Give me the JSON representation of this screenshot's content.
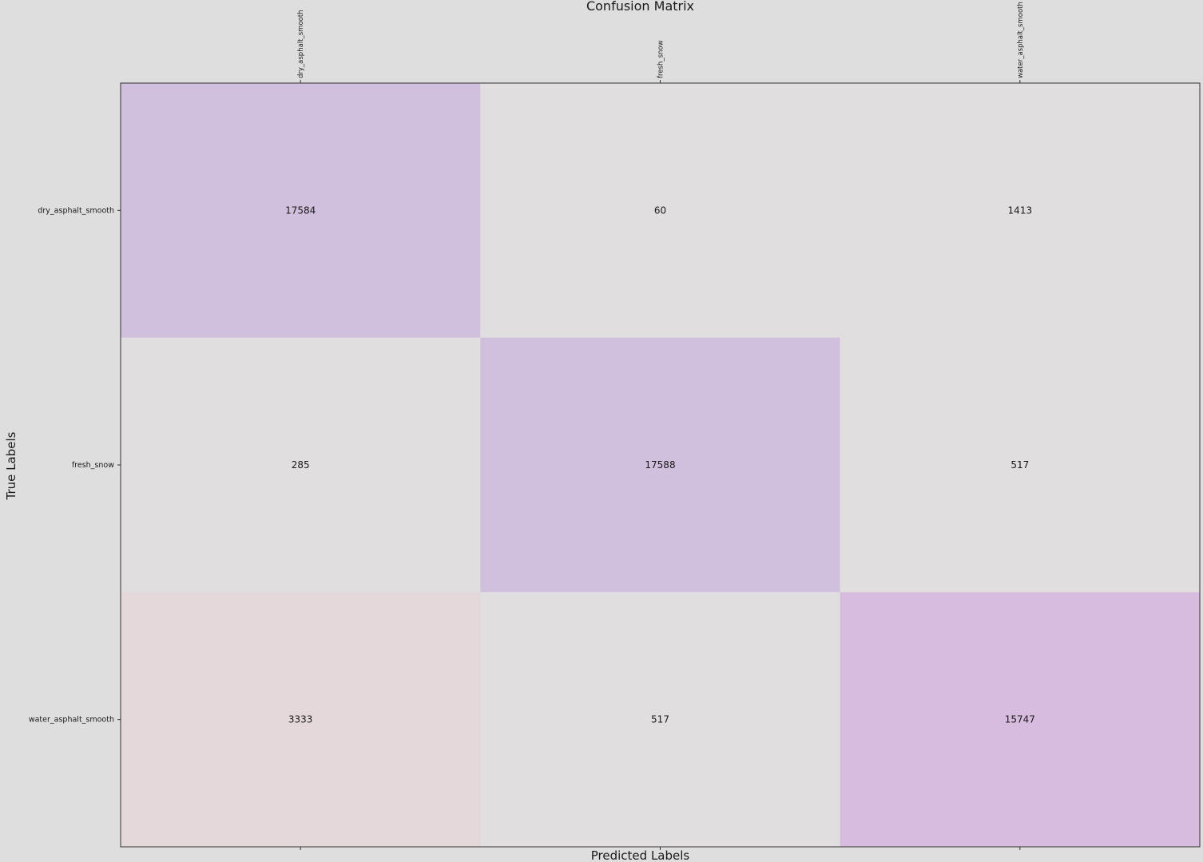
{
  "chart_data": {
    "type": "heatmap",
    "title": "Confusion Matrix",
    "xlabel": "Predicted Labels",
    "ylabel": "True Labels",
    "x_categories": [
      "dry_asphalt_smooth",
      "fresh_snow",
      "water_asphalt_smooth"
    ],
    "y_categories": [
      "dry_asphalt_smooth",
      "fresh_snow",
      "water_asphalt_smooth"
    ],
    "values": [
      [
        17584,
        60,
        1413
      ],
      [
        285,
        17588,
        517
      ],
      [
        3333,
        517,
        15747
      ]
    ],
    "colors": {
      "background": "#dedede",
      "high": "#d1bfde",
      "diag_last": "#d8bce0",
      "low": "#e0dede",
      "mid_low": "#e4d8da",
      "text": "#1a1a1a"
    }
  }
}
